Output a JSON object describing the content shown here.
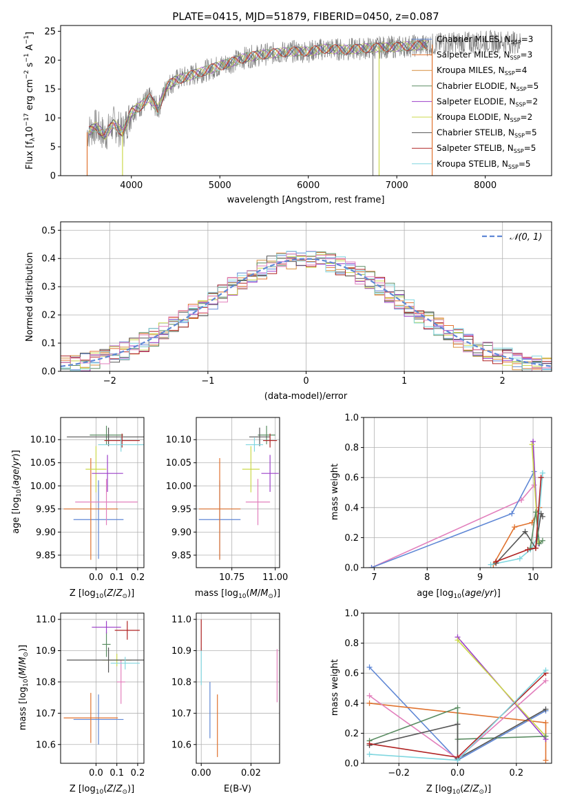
{
  "figure_title": "PLATE=0415, MJD=51879, FIBERID=0450, z=0.087",
  "colors": {
    "Chabrier MILES": "#5f87d5",
    "Salpeter MILES": "#e0722e",
    "Kroupa MILES": "#d68e3c",
    "Chabrier ELODIE": "#5a8c62",
    "Salpeter ELODIE": "#9b3ec8",
    "Kroupa ELODIE": "#cbd84a",
    "Chabrier STELIB": "#555555",
    "Salpeter STELIB": "#b02222",
    "Kroupa STELIB": "#7fd6df",
    "pink": "#e27fbc",
    "normal": "#5f87d5"
  },
  "chart_data": [
    {
      "id": "spectrum",
      "type": "line",
      "xlabel": "wavelength [Angstrom, rest frame]",
      "ylabel": "Flux [f_λ10^-17 erg cm^-2 s^-1 A^-1]",
      "xlim": [
        3200,
        8750
      ],
      "ylim": [
        0,
        26
      ],
      "xticks": [
        4000,
        5000,
        6000,
        7000,
        8000
      ],
      "yticks": [
        0,
        5,
        10,
        15,
        20,
        25
      ],
      "legend_position": "upper right",
      "continuum": {
        "x": [
          3500,
          3600,
          3700,
          3800,
          3900,
          4000,
          4100,
          4200,
          4300,
          4400,
          4500,
          4700,
          4900,
          5100,
          5300,
          5500,
          5800,
          6000,
          6200,
          6400,
          6600,
          6800,
          7000,
          7200,
          7400,
          7600,
          7800,
          8000,
          8200,
          8400
        ],
        "y": [
          7.5,
          8.5,
          7.0,
          9.0,
          7.5,
          11.0,
          12.0,
          13.5,
          11.5,
          15.5,
          16.5,
          17.5,
          18.5,
          19.5,
          20.5,
          21.0,
          21.5,
          21.5,
          22.0,
          21.8,
          22.0,
          22.2,
          22.3,
          22.5,
          22.7,
          23.0,
          23.0,
          23.2,
          23.2,
          23.0
        ]
      },
      "legend": [
        {
          "label": "Chabrier MILES, N_SSP=3",
          "color": "Chabrier MILES"
        },
        {
          "label": "Salpeter MILES, N_SSP=3",
          "color": "Salpeter MILES"
        },
        {
          "label": "Kroupa MILES, N_SSP=4",
          "color": "Kroupa MILES"
        },
        {
          "label": "Chabrier ELODIE, N_SSP=5",
          "color": "Chabrier ELODIE"
        },
        {
          "label": "Salpeter ELODIE, N_SSP=2",
          "color": "Salpeter ELODIE"
        },
        {
          "label": "Kroupa ELODIE, N_SSP=2",
          "color": "Kroupa ELODIE"
        },
        {
          "label": "Chabrier STELIB, N_SSP=5",
          "color": "Chabrier STELIB"
        },
        {
          "label": "Salpeter STELIB, N_SSP=5",
          "color": "Salpeter STELIB"
        },
        {
          "label": "Kroupa STELIB, N_SSP=5",
          "color": "Kroupa STELIB"
        }
      ]
    },
    {
      "id": "residuals",
      "type": "area",
      "xlabel": "(data-model)/error",
      "ylabel": "Normed distribution",
      "xlim": [
        -2.5,
        2.5
      ],
      "ylim": [
        0,
        0.53
      ],
      "xticks": [
        -2,
        -1,
        0,
        1,
        2
      ],
      "yticks": [
        0.0,
        0.1,
        0.2,
        0.3,
        0.4,
        0.5
      ],
      "grid": true,
      "bin_width": 0.1,
      "bins_start": -2.5,
      "legend": [
        {
          "label": "𝒩(0, 1)",
          "style": "dashed"
        }
      ],
      "legend_position": "upper right"
    },
    {
      "id": "age_vs_Z",
      "type": "scatter",
      "xlabel": "Z [log10(Z/Z_⊙)]",
      "ylabel": "age  [log10(age/yr)]",
      "xlim": [
        -0.17,
        0.23
      ],
      "ylim": [
        9.823,
        10.148
      ],
      "xticks": [
        0.0,
        0.1,
        0.2
      ],
      "yticks": [
        9.85,
        9.9,
        9.95,
        10.0,
        10.05,
        10.1
      ],
      "grid": true,
      "points": [
        {
          "color": "Chabrier MILES",
          "x": 0.012,
          "y": 9.927,
          "xerr": 0.12,
          "yerr": 0.085
        },
        {
          "color": "Salpeter MILES",
          "x": -0.025,
          "y": 9.95,
          "xerr": 0.13,
          "yerr": 0.11
        },
        {
          "color": "pink",
          "x": 0.05,
          "y": 9.965,
          "xerr": 0.15,
          "yerr": 0.05
        },
        {
          "color": "Kroupa ELODIE",
          "x": 0.0,
          "y": 10.036,
          "xerr": 0.05,
          "yerr": 0.05
        },
        {
          "color": "Salpeter ELODIE",
          "x": 0.055,
          "y": 10.027,
          "xerr": 0.075,
          "yerr": 0.04
        },
        {
          "color": "Chabrier ELODIE",
          "x": 0.05,
          "y": 10.11,
          "xerr": 0.08,
          "yerr": 0.02
        },
        {
          "color": "Chabrier STELIB",
          "x": 0.06,
          "y": 10.106,
          "xerr": 0.2,
          "yerr": 0.02
        },
        {
          "color": "Salpeter STELIB",
          "x": 0.125,
          "y": 10.098,
          "xerr": 0.085,
          "yerr": 0.015
        },
        {
          "color": "Kroupa STELIB",
          "x": 0.12,
          "y": 10.089,
          "xerr": 0.11,
          "yerr": 0.015
        }
      ]
    },
    {
      "id": "age_vs_mass",
      "type": "scatter",
      "xlabel": "mass [log10(M/M_⊙)]",
      "ylabel": "",
      "xlim": [
        10.545,
        11.025
      ],
      "ylim": [
        9.823,
        10.148
      ],
      "xticks": [
        10.75,
        11.0
      ],
      "tick_labels_x": [
        "10.75",
        "11.00"
      ],
      "yticks": [
        9.85,
        9.9,
        9.95,
        10.0,
        10.05,
        10.1
      ],
      "grid": true,
      "points": [
        {
          "color": "Chabrier MILES",
          "x": 10.68,
          "y": 9.927,
          "xerr": 0.12,
          "yerr": 0.085
        },
        {
          "color": "Salpeter MILES",
          "x": 10.68,
          "y": 9.95,
          "xerr": 0.12,
          "yerr": 0.11
        },
        {
          "color": "pink",
          "x": 10.9,
          "y": 9.965,
          "xerr": 0.07,
          "yerr": 0.05
        },
        {
          "color": "Kroupa ELODIE",
          "x": 10.86,
          "y": 10.036,
          "xerr": 0.05,
          "yerr": 0.05
        },
        {
          "color": "Salpeter ELODIE",
          "x": 10.97,
          "y": 10.027,
          "xerr": 0.05,
          "yerr": 0.04
        },
        {
          "color": "Chabrier ELODIE",
          "x": 10.95,
          "y": 10.11,
          "xerr": 0.05,
          "yerr": 0.02
        },
        {
          "color": "Chabrier STELIB",
          "x": 10.91,
          "y": 10.106,
          "xerr": 0.06,
          "yerr": 0.02
        },
        {
          "color": "Salpeter STELIB",
          "x": 10.97,
          "y": 10.098,
          "xerr": 0.04,
          "yerr": 0.015
        },
        {
          "color": "Kroupa STELIB",
          "x": 10.88,
          "y": 10.089,
          "xerr": 0.05,
          "yerr": 0.015
        }
      ]
    },
    {
      "id": "weight_vs_age",
      "type": "line",
      "xlabel": "age  [log10(age/yr)]",
      "ylabel": "mass weight",
      "xlim": [
        6.8,
        10.35
      ],
      "ylim": [
        0,
        1.0
      ],
      "xticks": [
        7,
        8,
        9,
        10
      ],
      "yticks": [
        0.0,
        0.2,
        0.4,
        0.6,
        0.8,
        1.0
      ],
      "grid": true,
      "series": [
        {
          "color": "pink",
          "x": [
            6.95,
            9.78,
            10.02
          ],
          "y": [
            0.0,
            0.45,
            0.55
          ]
        },
        {
          "color": "Chabrier MILES",
          "x": [
            6.95,
            9.6,
            10.02
          ],
          "y": [
            0.0,
            0.36,
            0.64
          ]
        },
        {
          "color": "Salpeter MILES",
          "x": [
            9.25,
            9.65,
            9.98,
            10.12
          ],
          "y": [
            0.02,
            0.27,
            0.3,
            0.4
          ]
        },
        {
          "color": "Salpeter ELODIE",
          "x": [
            10.0,
            10.1
          ],
          "y": [
            0.84,
            0.16
          ]
        },
        {
          "color": "Kroupa ELODIE",
          "x": [
            9.98,
            10.1
          ],
          "y": [
            0.82,
            0.17
          ]
        },
        {
          "color": "Kroupa STELIB",
          "x": [
            9.2,
            9.75,
            9.95,
            10.08,
            10.18
          ],
          "y": [
            0.02,
            0.06,
            0.12,
            0.2,
            0.63
          ]
        },
        {
          "color": "Chabrier STELIB",
          "x": [
            9.3,
            9.85,
            10.05,
            10.15,
            10.18
          ],
          "y": [
            0.03,
            0.24,
            0.13,
            0.36,
            0.34
          ]
        },
        {
          "color": "Chabrier ELODIE",
          "x": [
            9.95,
            10.05,
            10.12,
            10.18
          ],
          "y": [
            0.13,
            0.37,
            0.16,
            0.18
          ]
        },
        {
          "color": "Salpeter STELIB",
          "x": [
            9.3,
            9.9,
            10.05,
            10.15
          ],
          "y": [
            0.04,
            0.12,
            0.13,
            0.6
          ]
        }
      ]
    },
    {
      "id": "mass_vs_Z",
      "type": "scatter",
      "xlabel": "Z [log10(Z/Z_⊙)]",
      "ylabel": "mass [log10(M/M_⊙)]",
      "xlim": [
        -0.17,
        0.23
      ],
      "ylim": [
        10.54,
        11.02
      ],
      "xticks": [
        0.0,
        0.1,
        0.2
      ],
      "yticks": [
        10.6,
        10.7,
        10.8,
        10.9,
        11.0
      ],
      "grid": true,
      "points": [
        {
          "color": "Chabrier MILES",
          "x": 0.012,
          "y": 10.68,
          "xerr": 0.12,
          "yerr": 0.08
        },
        {
          "color": "Salpeter MILES",
          "x": -0.025,
          "y": 10.685,
          "xerr": 0.13,
          "yerr": 0.08
        },
        {
          "color": "pink",
          "x": 0.12,
          "y": 10.8,
          "xerr": 0.02,
          "yerr": 0.07
        },
        {
          "color": "Kroupa ELODIE",
          "x": 0.1,
          "y": 10.87,
          "xerr": 0.07,
          "yerr": 0.02
        },
        {
          "color": "Chabrier STELIB",
          "x": 0.06,
          "y": 10.87,
          "xerr": 0.2,
          "yerr": 0.04
        },
        {
          "color": "Chabrier ELODIE",
          "x": 0.05,
          "y": 10.92,
          "xerr": 0.02,
          "yerr": 0.04
        },
        {
          "color": "Kroupa STELIB",
          "x": 0.14,
          "y": 10.86,
          "xerr": 0.07,
          "yerr": 0.02
        },
        {
          "color": "Salpeter ELODIE",
          "x": 0.05,
          "y": 10.975,
          "xerr": 0.07,
          "yerr": 0.02
        },
        {
          "color": "Salpeter STELIB",
          "x": 0.15,
          "y": 10.965,
          "xerr": 0.06,
          "yerr": 0.03
        }
      ]
    },
    {
      "id": "mass_vs_EBV",
      "type": "scatter",
      "xlabel": "E(B-V)",
      "ylabel": "",
      "xlim": [
        -0.002,
        0.0315
      ],
      "ylim": [
        10.54,
        11.02
      ],
      "xticks": [
        0.0,
        0.02
      ],
      "tick_labels_x": [
        "0.00",
        "0.02"
      ],
      "yticks": [
        10.6,
        10.7,
        10.8,
        10.9,
        11.0
      ],
      "grid": true,
      "points": [
        {
          "color": "Chabrier MILES",
          "x": 0.0035,
          "y": 10.71,
          "xerr": 0,
          "yerr": 0.09
        },
        {
          "color": "Salpeter MILES",
          "x": 0.0065,
          "y": 10.66,
          "xerr": 0,
          "yerr": 0.1
        },
        {
          "color": "pink",
          "x": 0.0305,
          "y": 10.82,
          "xerr": 0,
          "yerr": 0.085
        },
        {
          "color": "Kroupa STELIB",
          "x": 0.0,
          "y": 10.85,
          "xerr": 0,
          "yerr": 0.06
        },
        {
          "color": "Salpeter STELIB",
          "x": 0.0,
          "y": 10.95,
          "xerr": 0,
          "yerr": 0.05
        }
      ]
    },
    {
      "id": "weight_vs_Z",
      "type": "line",
      "xlabel": "Z [log10(Z/Z_⊙)]",
      "ylabel": "mass weight",
      "xlim": [
        -0.32,
        0.32
      ],
      "ylim": [
        0,
        1.0
      ],
      "xticks": [
        -0.2,
        0.0,
        0.2
      ],
      "tick_labels_x": [
        "−0.2",
        "0.0",
        "0.2"
      ],
      "yticks": [
        0.0,
        0.2,
        0.4,
        0.6,
        0.8,
        1.0
      ],
      "grid": true,
      "series": [
        {
          "color": "Chabrier MILES",
          "x": [
            -0.3,
            0.0,
            0.3
          ],
          "y": [
            0.64,
            0.02,
            0.35
          ]
        },
        {
          "color": "Salpeter MILES",
          "x": [
            -0.3,
            0.3,
            0.3
          ],
          "y": [
            0.4,
            0.27,
            0.02
          ]
        },
        {
          "color": "pink",
          "x": [
            -0.3,
            0.0,
            0.3
          ],
          "y": [
            0.45,
            0.03,
            0.55
          ]
        },
        {
          "color": "Salpeter ELODIE",
          "x": [
            0.0,
            0.3
          ],
          "y": [
            0.84,
            0.16
          ]
        },
        {
          "color": "Kroupa ELODIE",
          "x": [
            0.0,
            0.3
          ],
          "y": [
            0.82,
            0.18
          ]
        },
        {
          "color": "Chabrier ELODIE",
          "x": [
            -0.3,
            0.0,
            0.0,
            0.3
          ],
          "y": [
            0.15,
            0.37,
            0.16,
            0.18
          ]
        },
        {
          "color": "Chabrier STELIB",
          "x": [
            -0.3,
            0.0,
            0.0,
            0.3
          ],
          "y": [
            0.12,
            0.26,
            0.03,
            0.36
          ]
        },
        {
          "color": "Salpeter STELIB",
          "x": [
            -0.3,
            0.0,
            0.3
          ],
          "y": [
            0.13,
            0.04,
            0.6
          ]
        },
        {
          "color": "Kroupa STELIB",
          "x": [
            -0.3,
            0.0,
            0.3
          ],
          "y": [
            0.06,
            0.02,
            0.62
          ]
        }
      ]
    }
  ]
}
